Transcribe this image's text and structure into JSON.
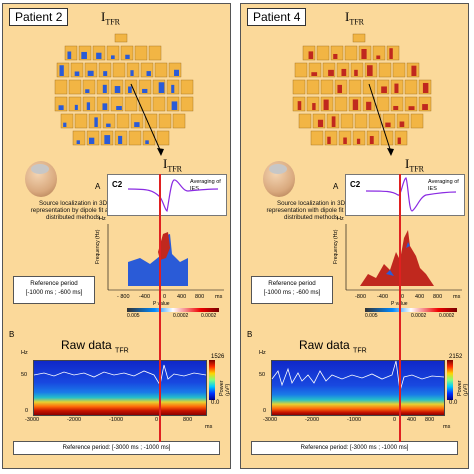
{
  "left": {
    "title": "Patient 2",
    "itfr_main": "I",
    "itfr_sub": "TFR",
    "src_text": "Source localization in 3D representation by dipole fit and distributed methods",
    "ref_line1": "Reference period",
    "ref_line2": "[-1000 ms ; -600 ms]",
    "panel_a": "A",
    "panel_b": "B",
    "c2": "C2",
    "avg": "Averaging of IES",
    "hz": "Hz",
    "freq": "Frequency (Hz)",
    "ms": "ms",
    "ticks": [
      "- 800",
      "-400",
      "0",
      "400",
      "800"
    ],
    "pvalue": "P value",
    "pv_vals": [
      "0.005",
      "0.0002",
      "0.0002"
    ],
    "raw_title": "Raw data",
    "raw_sub": "TFR",
    "cb_top": "1526",
    "cb_bot": "0.0",
    "power": "Power (µV²)",
    "raw_ticks": [
      "-3000",
      "-2000",
      "-1000",
      "0",
      "800"
    ],
    "raw_ms": "ms",
    "ref2": "Reference period: [-3000 ms ; -1000 ms]",
    "hz_ticks": [
      "50",
      "0"
    ],
    "spec_hz": "Hz"
  },
  "right": {
    "title": "Patient 4",
    "itfr_main": "I",
    "itfr_sub": "TFR",
    "src_text": "Source localization in 3D representation with dipole fit and distributed methods",
    "ref_line1": "Reference period",
    "ref_line2": "[-1000 ms ; -600 ms]",
    "panel_a": "A",
    "panel_b": "B",
    "c2": "C2",
    "avg": "Averaging of IES",
    "hz": "Hz",
    "freq": "Frequency (Hz)",
    "ms": "ms",
    "ticks": [
      "-800",
      "-400",
      "0",
      "400",
      "800"
    ],
    "pvalue": "P value",
    "pv_vals": [
      "0.005",
      "0.0002",
      "0.0002"
    ],
    "raw_title": "Raw data",
    "raw_sub": "TFR",
    "cb_top": "2152",
    "cb_bot": "0.0",
    "power": "Power (µV²)",
    "raw_ticks": [
      "-3000",
      "-2000",
      "-1000",
      "0",
      "400",
      "800"
    ],
    "raw_ms": "ms",
    "ref2": "Reference period: [-3000 ms ; -1000 ms]",
    "hz_ticks": [
      "50",
      "0"
    ],
    "spec_hz": "Hz"
  },
  "colors": {
    "panel_bg": "#fbd99a",
    "blue_blob": "#2a5bd7",
    "red_blob": "#c0281e",
    "red_line": "#e02020"
  }
}
